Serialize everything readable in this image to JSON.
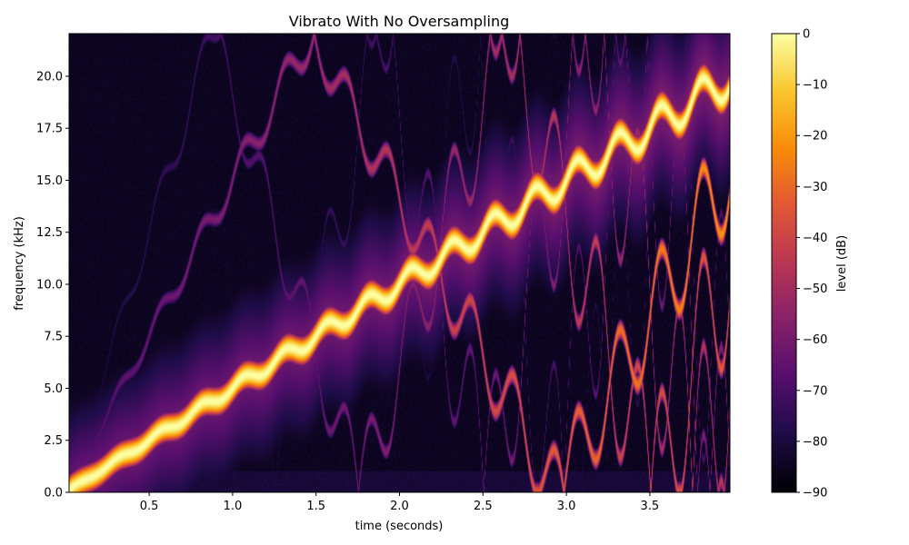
{
  "chart_data": {
    "type": "heatmap",
    "title": "Vibrato With No Oversampling",
    "xlabel": "time (seconds)",
    "ylabel": "frequency (kHz)",
    "xlim": [
      0.02,
      3.98
    ],
    "ylim": [
      0.0,
      22.05
    ],
    "x_ticks": [
      0.5,
      1.0,
      1.5,
      2.0,
      2.5,
      3.0,
      3.5
    ],
    "x_tick_labels": [
      "0.5",
      "1.0",
      "1.5",
      "2.0",
      "2.5",
      "3.0",
      "3.5"
    ],
    "y_ticks": [
      0.0,
      2.5,
      5.0,
      7.5,
      10.0,
      12.5,
      15.0,
      17.5,
      20.0
    ],
    "y_tick_labels": [
      "0.0",
      "2.5",
      "5.0",
      "7.5",
      "10.0",
      "12.5",
      "15.0",
      "17.5",
      "20.0"
    ],
    "colorbar": {
      "label": "level (dB)",
      "range": [
        -90,
        0
      ],
      "ticks": [
        0,
        -10,
        -20,
        -30,
        -40,
        -50,
        -60,
        -70,
        -80,
        -90
      ],
      "tick_labels": [
        "0",
        "−10",
        "−20",
        "−30",
        "−40",
        "−50",
        "−60",
        "−70",
        "−80",
        "−90"
      ],
      "colormap": "inferno"
    },
    "fundamental": {
      "center_khz_per_sec": 5.0,
      "vibrato_depth_khz": [
        0.05,
        0.85
      ],
      "vibrato_rate_hz": 4.0,
      "level_db": 0
    },
    "aliases": [
      {
        "fold_about_khz": 22.05,
        "count": 1,
        "level_db": [
          -70,
          -20
        ]
      },
      {
        "fold_about_khz": 0.0,
        "level_db": -65
      }
    ],
    "background_level_db": -85
  }
}
